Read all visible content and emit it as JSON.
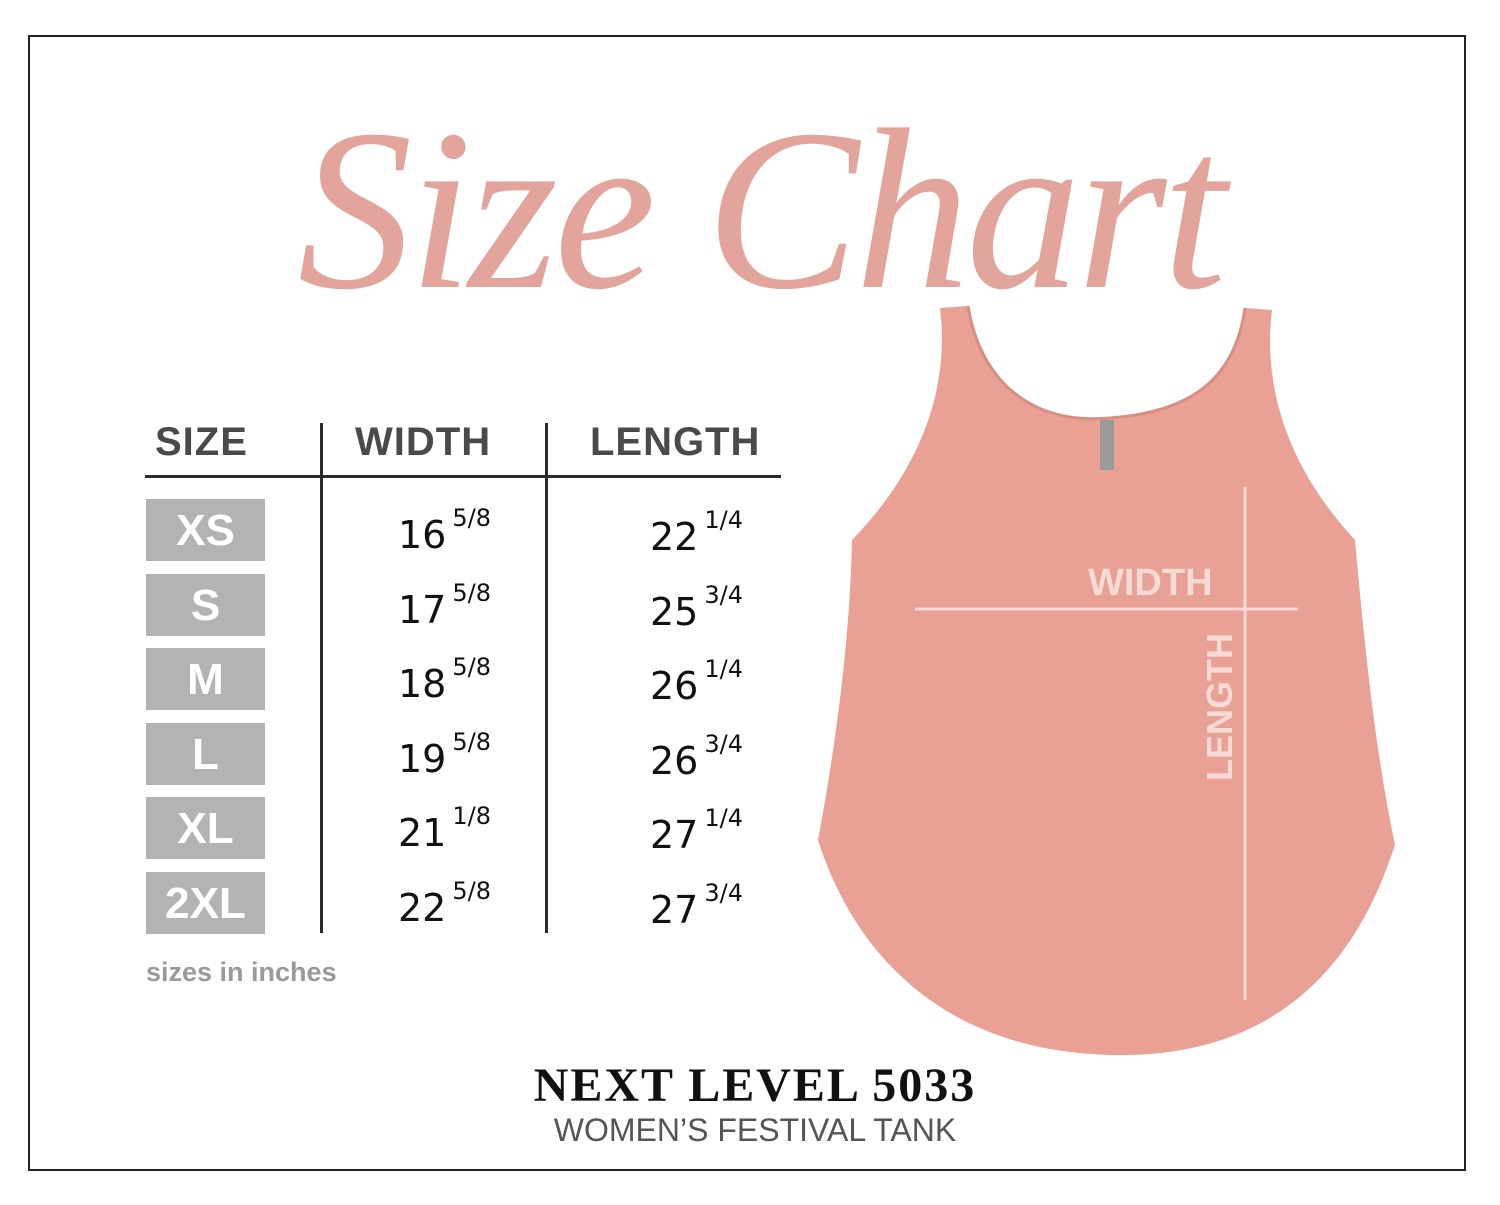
{
  "title": "Size Chart",
  "table": {
    "headers": [
      "SIZE",
      "WIDTH",
      "LENGTH"
    ],
    "rows": [
      {
        "size": "XS",
        "width": "16",
        "width_frac": "5/8",
        "length": "22",
        "length_frac": "1/4"
      },
      {
        "size": "S",
        "width": "17",
        "width_frac": "5/8",
        "length": "25",
        "length_frac": "3/4"
      },
      {
        "size": "M",
        "width": "18",
        "width_frac": "5/8",
        "length": "26",
        "length_frac": "1/4"
      },
      {
        "size": "L",
        "width": "19",
        "width_frac": "5/8",
        "length": "26",
        "length_frac": "3/4"
      },
      {
        "size": "XL",
        "width": "21",
        "width_frac": "1/8",
        "length": "27",
        "length_frac": "1/4"
      },
      {
        "size": "2XL",
        "width": "22",
        "width_frac": "5/8",
        "length": "27",
        "length_frac": "3/4"
      }
    ],
    "note": "sizes in inches"
  },
  "garment": {
    "width_label": "WIDTH",
    "length_label": "LENGTH",
    "color": "#e9a095"
  },
  "product": {
    "name": "NEXT LEVEL 5033",
    "subtitle": "WOMEN’S FESTIVAL TANK"
  },
  "colors": {
    "title": "#e3a49c",
    "badge": "#b3b3b3"
  }
}
